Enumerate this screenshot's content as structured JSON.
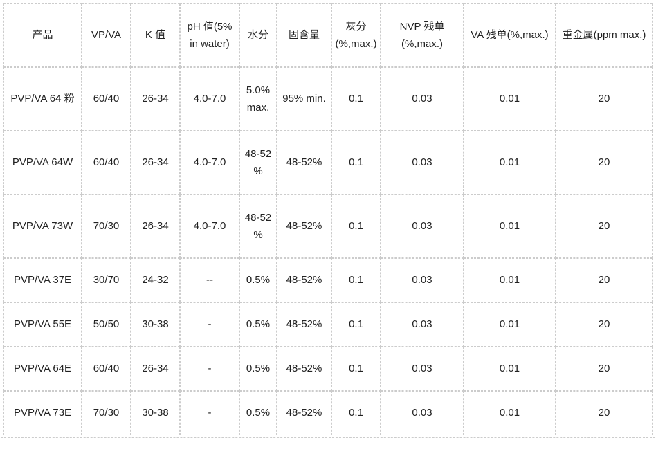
{
  "table": {
    "headers": [
      "产品",
      "VP/VA",
      "K 值",
      "pH 值(5% in water)",
      "水分",
      "固含量",
      "灰分 (%,max.)",
      "NVP 残单 (%,max.)",
      "VA 残单(%,max.)",
      "重金属(ppm max.)"
    ],
    "rows": [
      [
        "PVP/VA 64 粉",
        "60/40",
        "26-34",
        "4.0-7.0",
        "5.0% max.",
        "95% min.",
        "0.1",
        "0.03",
        "0.01",
        "20"
      ],
      [
        "PVP/VA 64W",
        "60/40",
        "26-34",
        "4.0-7.0",
        "48-52 %",
        "48-52%",
        "0.1",
        "0.03",
        "0.01",
        "20"
      ],
      [
        "PVP/VA 73W",
        "70/30",
        "26-34",
        "4.0-7.0",
        "48-52 %",
        "48-52%",
        "0.1",
        "0.03",
        "0.01",
        "20"
      ],
      [
        "PVP/VA 37E",
        "30/70",
        "24-32",
        "--",
        "0.5%",
        "48-52%",
        "0.1",
        "0.03",
        "0.01",
        "20"
      ],
      [
        "PVP/VA 55E",
        "50/50",
        "30-38",
        "-",
        "0.5%",
        "48-52%",
        "0.1",
        "0.03",
        "0.01",
        "20"
      ],
      [
        "PVP/VA 64E",
        "60/40",
        "26-34",
        "-",
        "0.5%",
        "48-52%",
        "0.1",
        "0.03",
        "0.01",
        "20"
      ],
      [
        "PVP/VA 73E",
        "70/30",
        "30-38",
        "-",
        "0.5%",
        "48-52%",
        "0.1",
        "0.03",
        "0.01",
        "20"
      ]
    ]
  },
  "colors": {
    "border": "#cccccc",
    "text": "#222222",
    "background": "#ffffff"
  }
}
